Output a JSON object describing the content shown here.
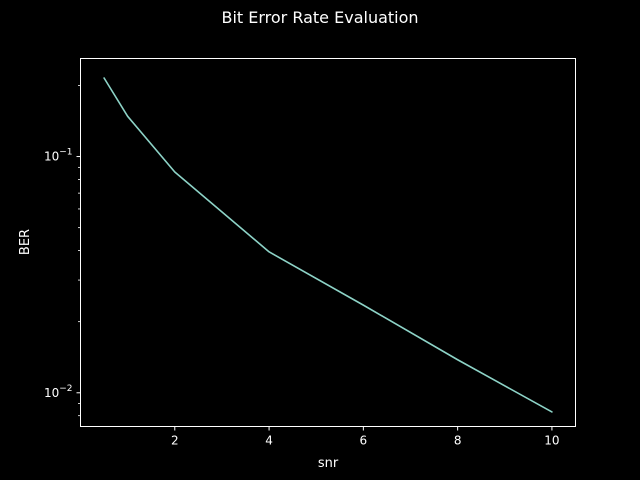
{
  "chart_data": {
    "type": "line",
    "title": "Bit Error Rate Evaluation",
    "xlabel": "snr",
    "ylabel": "BER",
    "yscale": "log",
    "xlim": [
      0.0,
      10.5
    ],
    "ylim": [
      0.0072,
      0.26
    ],
    "xticks": [
      {
        "value": 2,
        "label": "2"
      },
      {
        "value": 4,
        "label": "4"
      },
      {
        "value": 6,
        "label": "6"
      },
      {
        "value": 8,
        "label": "8"
      },
      {
        "value": 10,
        "label": "10"
      }
    ],
    "yticks_major": [
      {
        "value": 0.01,
        "base": "10",
        "exp": "−2"
      },
      {
        "value": 0.1,
        "base": "10",
        "exp": "−1"
      }
    ],
    "yticks_minor": [
      0.008,
      0.009,
      0.02,
      0.03,
      0.04,
      0.05,
      0.06,
      0.07,
      0.08,
      0.09,
      0.2
    ],
    "grid": false,
    "colors": {
      "background": "#000000",
      "axes": "#ffffff",
      "line": "#8dd3c7"
    },
    "series": [
      {
        "x": [
          0.5,
          1,
          2,
          4,
          6,
          8,
          10
        ],
        "y": [
          0.215,
          0.148,
          0.086,
          0.0395,
          0.0235,
          0.0138,
          0.0083
        ]
      }
    ]
  }
}
